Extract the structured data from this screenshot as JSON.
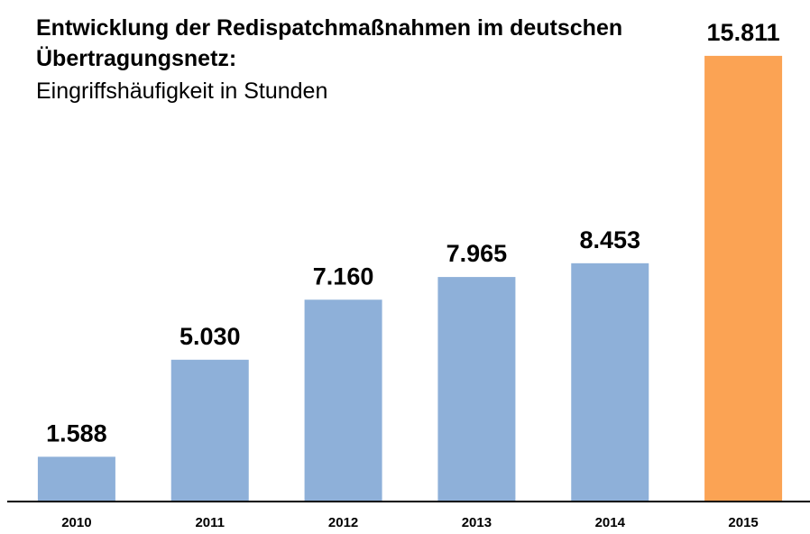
{
  "chart_data": {
    "type": "bar",
    "title": "Entwicklung der Redispatchmaßnahmen im deutschen Übertragungsnetz:",
    "subtitle": "Eingriffshäufigkeit in Stunden",
    "categories": [
      "2010",
      "2011",
      "2012",
      "2013",
      "2014",
      "2015"
    ],
    "values": [
      1588,
      5030,
      7160,
      7965,
      8453,
      15811
    ],
    "value_labels": [
      "1.588",
      "5.030",
      "7.160",
      "7.965",
      "8.453",
      "15.811"
    ],
    "colors": [
      "#8eb0d9",
      "#8eb0d9",
      "#8eb0d9",
      "#8eb0d9",
      "#8eb0d9",
      "#fba354"
    ],
    "ylim": [
      0,
      16000
    ]
  }
}
